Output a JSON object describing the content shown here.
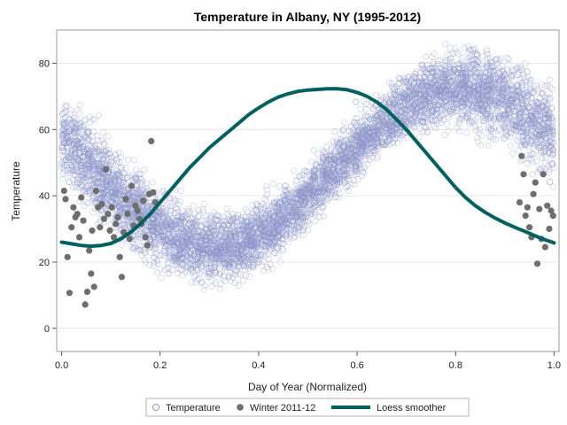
{
  "chart_data": {
    "type": "scatter",
    "title": "Temperature in Albany, NY (1995-2012)",
    "xlabel": "Day of Year (Normalized)",
    "ylabel": "Temperature",
    "xlim": [
      -0.01,
      1.01
    ],
    "ylim": [
      -7,
      90
    ],
    "x_ticks": [
      0.0,
      0.2,
      0.4,
      0.6,
      0.8,
      1.0
    ],
    "x_tick_labels": [
      "0.0",
      "0.2",
      "0.4",
      "0.6",
      "0.8",
      "1.0"
    ],
    "y_ticks": [
      0,
      20,
      40,
      60,
      80
    ],
    "y_tick_labels": [
      "0",
      "20",
      "40",
      "60",
      "80"
    ],
    "grid": "horizontal",
    "legend_position": "bottom",
    "series": [
      {
        "name": "Temperature",
        "kind": "scatter",
        "marker": "open-circle",
        "color": "#8a93c8",
        "n_points": 6570,
        "model": {
          "mean": 48.5,
          "amplitude": 24,
          "phase_offset": 0.31,
          "spread": 9
        }
      },
      {
        "name": "Winter 2011-12",
        "kind": "scatter",
        "marker": "filled-circle",
        "color": "#6e6e6e",
        "points": [
          [
            0.005,
            41.5
          ],
          [
            0.008,
            39
          ],
          [
            0.012,
            21.5
          ],
          [
            0.016,
            10.7
          ],
          [
            0.02,
            30.5
          ],
          [
            0.024,
            36.5
          ],
          [
            0.028,
            33.5
          ],
          [
            0.032,
            34.5
          ],
          [
            0.036,
            27.5
          ],
          [
            0.04,
            39.5
          ],
          [
            0.044,
            32.5
          ],
          [
            0.048,
            7.2
          ],
          [
            0.052,
            11
          ],
          [
            0.056,
            23.5
          ],
          [
            0.06,
            16.5
          ],
          [
            0.062,
            29.5
          ],
          [
            0.066,
            12.5
          ],
          [
            0.07,
            41.5
          ],
          [
            0.074,
            36.5
          ],
          [
            0.078,
            30.5
          ],
          [
            0.082,
            37.5
          ],
          [
            0.086,
            33
          ],
          [
            0.09,
            48
          ],
          [
            0.094,
            34.5
          ],
          [
            0.098,
            29.5
          ],
          [
            0.102,
            36.5
          ],
          [
            0.106,
            27.5
          ],
          [
            0.11,
            31.5
          ],
          [
            0.114,
            33.5
          ],
          [
            0.118,
            21.5
          ],
          [
            0.122,
            15.5
          ],
          [
            0.126,
            29
          ],
          [
            0.13,
            39
          ],
          [
            0.134,
            34.5
          ],
          [
            0.138,
            27
          ],
          [
            0.142,
            43
          ],
          [
            0.146,
            31
          ],
          [
            0.15,
            37
          ],
          [
            0.154,
            35.5
          ],
          [
            0.158,
            33
          ],
          [
            0.162,
            31.5
          ],
          [
            0.166,
            38.5
          ],
          [
            0.17,
            27.5
          ],
          [
            0.174,
            25
          ],
          [
            0.178,
            40.5
          ],
          [
            0.182,
            56.5
          ],
          [
            0.186,
            41
          ],
          [
            0.19,
            38
          ],
          [
            0.93,
            38
          ],
          [
            0.934,
            52
          ],
          [
            0.938,
            46.5
          ],
          [
            0.942,
            34
          ],
          [
            0.946,
            36.5
          ],
          [
            0.95,
            30.5
          ],
          [
            0.954,
            27.5
          ],
          [
            0.958,
            40.5
          ],
          [
            0.962,
            44
          ],
          [
            0.966,
            19.5
          ],
          [
            0.97,
            36
          ],
          [
            0.974,
            27
          ],
          [
            0.978,
            46.5
          ],
          [
            0.982,
            24.5
          ],
          [
            0.986,
            37
          ],
          [
            0.99,
            30
          ],
          [
            0.994,
            35.5
          ],
          [
            0.998,
            34
          ]
        ]
      },
      {
        "name": "Loess smoother",
        "kind": "line",
        "color": "#006060",
        "points": [
          [
            0.0,
            26
          ],
          [
            0.02,
            25.5
          ],
          [
            0.04,
            25
          ],
          [
            0.06,
            24.8
          ],
          [
            0.08,
            25.0
          ],
          [
            0.1,
            25.6
          ],
          [
            0.12,
            27
          ],
          [
            0.14,
            29
          ],
          [
            0.16,
            31.5
          ],
          [
            0.18,
            34.5
          ],
          [
            0.2,
            38
          ],
          [
            0.22,
            41.5
          ],
          [
            0.24,
            45
          ],
          [
            0.26,
            48.5
          ],
          [
            0.28,
            51.5
          ],
          [
            0.3,
            54.5
          ],
          [
            0.32,
            57
          ],
          [
            0.34,
            59.5
          ],
          [
            0.36,
            62
          ],
          [
            0.38,
            64.5
          ],
          [
            0.4,
            66.5
          ],
          [
            0.42,
            68.3
          ],
          [
            0.44,
            69.8
          ],
          [
            0.46,
            70.8
          ],
          [
            0.48,
            71.5
          ],
          [
            0.5,
            71.9
          ],
          [
            0.52,
            72.1
          ],
          [
            0.54,
            72.3
          ],
          [
            0.56,
            72.3
          ],
          [
            0.58,
            72.0
          ],
          [
            0.6,
            71.2
          ],
          [
            0.62,
            70
          ],
          [
            0.64,
            68.3
          ],
          [
            0.66,
            66
          ],
          [
            0.68,
            63
          ],
          [
            0.7,
            60
          ],
          [
            0.72,
            56.5
          ],
          [
            0.74,
            53
          ],
          [
            0.76,
            49.5
          ],
          [
            0.78,
            46
          ],
          [
            0.8,
            42.5
          ],
          [
            0.82,
            39.5
          ],
          [
            0.84,
            37
          ],
          [
            0.86,
            35
          ],
          [
            0.88,
            33.3
          ],
          [
            0.9,
            31.8
          ],
          [
            0.92,
            30.5
          ],
          [
            0.94,
            29.3
          ],
          [
            0.96,
            28
          ],
          [
            0.98,
            26.8
          ],
          [
            1.0,
            25.8
          ]
        ]
      }
    ]
  }
}
